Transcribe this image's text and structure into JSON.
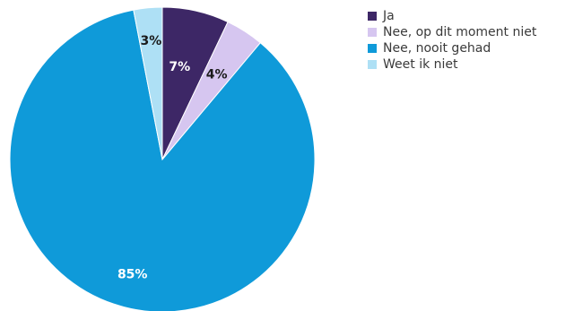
{
  "chart_data": {
    "type": "pie",
    "title": "",
    "slices": [
      {
        "name": "Ja",
        "value": 7,
        "label": "7%",
        "color": "#3d2766",
        "label_color": "#ffffff"
      },
      {
        "name": "Nee, op dit moment niet",
        "value": 4,
        "label": "4%",
        "color": "#d6c6f0",
        "label_color": "#1a1a1a"
      },
      {
        "name": "Nee, nooit gehad",
        "value": 85,
        "label": "85%",
        "color": "#0f9ad9",
        "label_color": "#ffffff"
      },
      {
        "name": "Weet ik niet",
        "value": 3,
        "label": "3%",
        "color": "#aee0f5",
        "label_color": "#1a1a1a"
      }
    ],
    "start": "12 o'clock",
    "direction": "clockwise",
    "legend_position": "top-right"
  }
}
